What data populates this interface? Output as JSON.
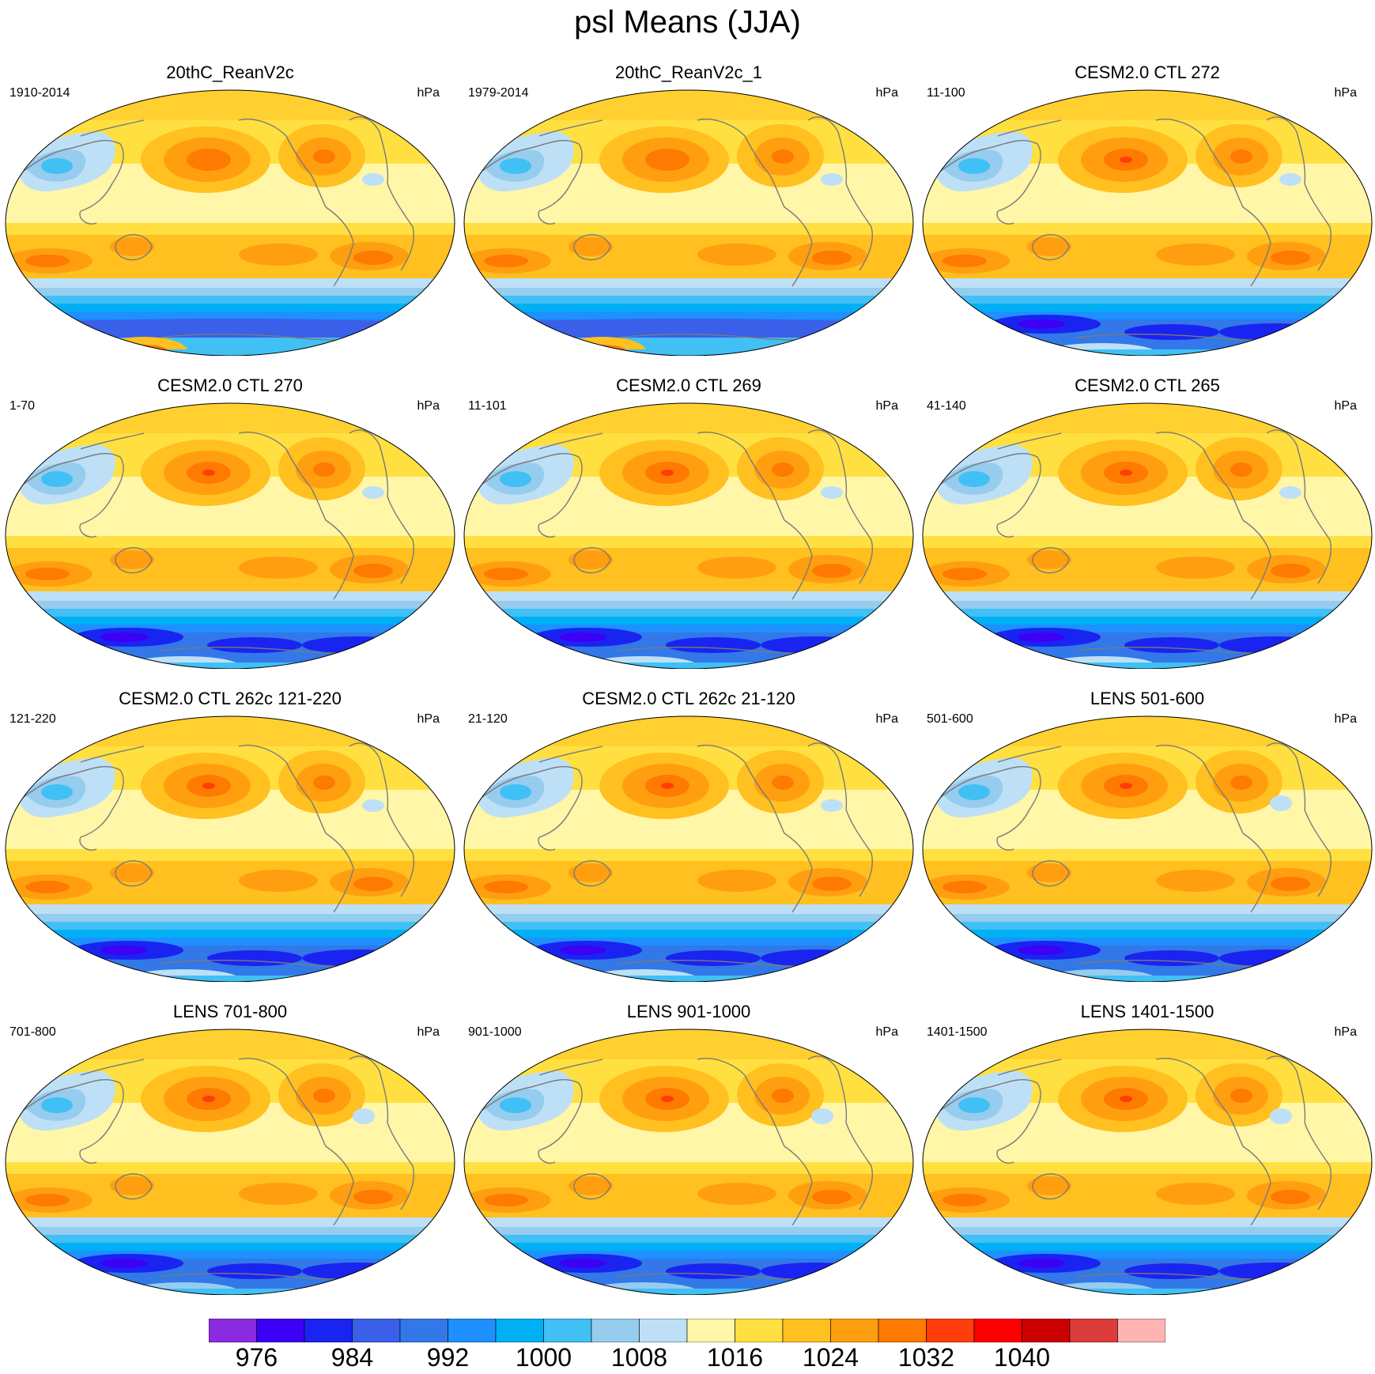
{
  "figure": {
    "title": "psl Means (JJA)"
  },
  "panels": [
    {
      "title": "20thC_ReanV2c",
      "years": "1910-2014",
      "units": "hPa",
      "variant": "rean"
    },
    {
      "title": "20thC_ReanV2c_1",
      "years": "1979-2014",
      "units": "hPa",
      "variant": "rean"
    },
    {
      "title": "CESM2.0 CTL 272",
      "years": "11-100",
      "units": "hPa",
      "variant": "cesm"
    },
    {
      "title": "CESM2.0 CTL 270",
      "years": "1-70",
      "units": "hPa",
      "variant": "cesm"
    },
    {
      "title": "CESM2.0 CTL 269",
      "years": "11-101",
      "units": "hPa",
      "variant": "cesm"
    },
    {
      "title": "CESM2.0 CTL 265",
      "years": "41-140",
      "units": "hPa",
      "variant": "cesm"
    },
    {
      "title": "CESM2.0 CTL 262c 121-220",
      "years": "121-220",
      "units": "hPa",
      "variant": "cesm"
    },
    {
      "title": "CESM2.0 CTL 262c 21-120",
      "years": "21-120",
      "units": "hPa",
      "variant": "cesm"
    },
    {
      "title": "LENS 501-600",
      "years": "501-600",
      "units": "hPa",
      "variant": "lens"
    },
    {
      "title": "LENS 701-800",
      "years": "701-800",
      "units": "hPa",
      "variant": "lens"
    },
    {
      "title": "LENS 901-1000",
      "years": "901-1000",
      "units": "hPa",
      "variant": "lens"
    },
    {
      "title": "LENS 1401-1500",
      "years": "1401-1500",
      "units": "hPa",
      "variant": "lens"
    }
  ],
  "colorbar": {
    "colors": [
      "#8a2be2",
      "#3b00f5",
      "#1a24f0",
      "#3a5fe8",
      "#3278e8",
      "#1e90ff",
      "#00b0f5",
      "#40c0f5",
      "#96ccee",
      "#bde0f7",
      "#fff6a8",
      "#ffe040",
      "#ffc020",
      "#ff9f10",
      "#ff7a00",
      "#ff3d0a",
      "#ff0000",
      "#cc0000",
      "#dc3c3c",
      "#ffb4b4"
    ],
    "labels": [
      "976",
      "984",
      "992",
      "1000",
      "1008",
      "1016",
      "1024",
      "1032",
      "1040"
    ]
  }
}
